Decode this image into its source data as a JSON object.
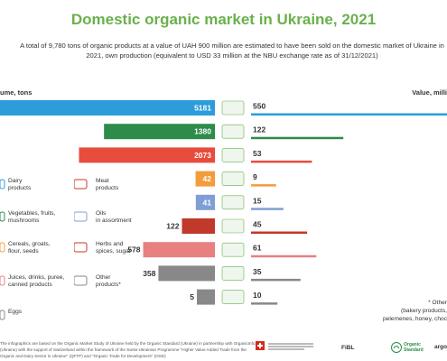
{
  "header": {
    "title": "Domestic organic market in Ukraine, 2021",
    "subtitle": "A total of 9,780 tons of organic products at a value of UAH 900 million are estimated to have been sold on the domestic market of Ukraine in 2021, own production (equivalent to USD 33 million at the NBU exchange rate as of 31/12/2021)"
  },
  "chart_data": {
    "type": "bar",
    "title": "Domestic organic market in Ukraine, 2021",
    "xlabel_left": "ume, tons",
    "xlabel_right": "Value, milli",
    "categories": [
      "Dairy products",
      "Meat products",
      "Vegetables, fruits, mushrooms",
      "Oils in assortment",
      "Cereals, groats, flour, seeds",
      "Herbs and spices, sugar",
      "Juices, drinks, puree, canned products",
      "Other products*",
      "Eggs"
    ],
    "series": [
      {
        "volume_labels": [
          "5181",
          "2073",
          "1380",
          "578",
          "358",
          "122",
          "42",
          "5",
          "41"
        ],
        "values": [
          5181,
          2073,
          1380,
          578,
          358,
          122,
          42,
          5,
          41
        ]
      },
      {
        "values": [
          550,
          53,
          122,
          61,
          35,
          45,
          9,
          10,
          15
        ]
      }
    ],
    "bar_colors": [
      "#2d9cdb",
      "#2e8b4a",
      "#e74c3c",
      "#f39c3d",
      "#7f9fd4",
      "#c0392b",
      "#e88080",
      "#888888",
      "#888888"
    ],
    "bar_order": [
      "Dairy products",
      "Vegetables, fruits, mushrooms",
      "Meat products",
      "Juices, drinks, puree, canned products",
      "Eggs",
      "Herbs and spices, sugar",
      "Oils in assortment",
      "Cereals, groats, flour, seeds",
      "Other products*"
    ],
    "legend": [
      {
        "label": "Dairy\nproducts",
        "icon": "milk-icon"
      },
      {
        "label": "Meat\nproducts",
        "icon": "meat-icon"
      },
      {
        "label": "Vegetables, fruits,\nmushrooms",
        "icon": "vegetables-icon"
      },
      {
        "label": "Oils\nin assortment",
        "icon": "oil-icon"
      },
      {
        "label": "Cereals, groats,\nflour, seeds",
        "icon": "grain-icon"
      },
      {
        "label": "Herbs and\nspices, sugar",
        "icon": "herbs-icon"
      },
      {
        "label": "Juices, drinks, puree,\ncanned products",
        "icon": "juice-icon"
      },
      {
        "label": "Other\nproducts*",
        "icon": "other-icon"
      },
      {
        "label": "Eggs",
        "icon": "eggs-icon"
      }
    ]
  },
  "note": "* Other\n(bakery products,\npelemenes, honey, choc",
  "footer": {
    "text": "The infographics are based on the Organic Market Study of Ukraine held by the Organic Standard (Ukraine) in partnership with OrganicInfo.ua (Ukraine) with the support of Switzerland within the framework of the Swiss-Ukrainian Programme \"Higher Value Added Trade from the Organic and Dairy Sector in Ukraine\" (QFTP) and \"Organic Trade for Development\" (OSD)"
  },
  "logos": [
    "FiBL",
    "Organic Standard",
    "argo"
  ],
  "colors": {
    "title": "#6ab04c",
    "accent": "#6ab04c"
  }
}
